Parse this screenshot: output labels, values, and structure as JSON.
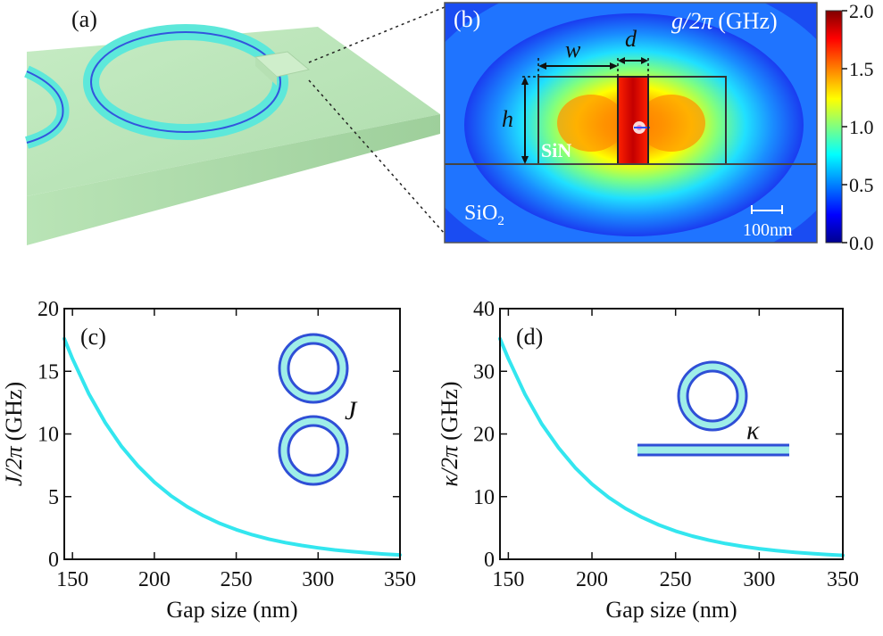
{
  "panel_labels": {
    "a": "(a)",
    "b": "(b)",
    "c": "(c)",
    "d": "(d)"
  },
  "panel_b": {
    "colorbar_title_symbol": "g/2π",
    "colorbar_title_unit": "(GHz)",
    "colorbar_ticks": [
      "2.0",
      "1.5",
      "1.0",
      "0.5",
      "0.0"
    ],
    "material_core": "SiN",
    "material_substrate": "SiO",
    "material_substrate_subscript": "2",
    "dim_w": "w",
    "dim_d": "d",
    "dim_h": "h",
    "scale_bar": "100nm"
  },
  "panel_c": {
    "inset_label": "J"
  },
  "panel_d": {
    "inset_label": "κ"
  },
  "chart_data": [
    {
      "id": "c",
      "type": "line",
      "title": "(c)",
      "xlabel": "Gap size (nm)",
      "ylabel_symbol": "J/2π",
      "ylabel_unit": "(GHz)",
      "xlim": [
        145,
        350
      ],
      "ylim": [
        0,
        20
      ],
      "xticks": [
        150,
        200,
        250,
        300,
        350
      ],
      "yticks": [
        0,
        5,
        10,
        15,
        20
      ],
      "color": "#33e6ef",
      "series": [
        {
          "name": "J/2π",
          "x": [
            145,
            150,
            160,
            170,
            180,
            190,
            200,
            210,
            220,
            230,
            240,
            250,
            260,
            270,
            280,
            290,
            300,
            310,
            320,
            330,
            340,
            350
          ],
          "y": [
            17.6,
            16.0,
            13.2,
            10.9,
            9.0,
            7.45,
            6.15,
            5.08,
            4.2,
            3.47,
            2.86,
            2.36,
            1.95,
            1.61,
            1.33,
            1.1,
            0.91,
            0.75,
            0.62,
            0.51,
            0.42,
            0.35
          ]
        }
      ]
    },
    {
      "id": "d",
      "type": "line",
      "title": "(d)",
      "xlabel": "Gap size (nm)",
      "ylabel_symbol": "κ/2π",
      "ylabel_unit": "(GHz)",
      "xlim": [
        145,
        350
      ],
      "ylim": [
        0,
        40
      ],
      "xticks": [
        150,
        200,
        250,
        300,
        350
      ],
      "yticks": [
        0,
        10,
        20,
        30,
        40
      ],
      "color": "#33e6ef",
      "series": [
        {
          "name": "κ/2π",
          "x": [
            145,
            150,
            160,
            170,
            180,
            190,
            200,
            210,
            220,
            230,
            240,
            250,
            260,
            270,
            280,
            290,
            300,
            310,
            320,
            330,
            340,
            350
          ],
          "y": [
            35.2,
            32.0,
            26.3,
            21.6,
            17.8,
            14.6,
            12.0,
            9.87,
            8.11,
            6.67,
            5.48,
            4.5,
            3.7,
            3.04,
            2.5,
            2.06,
            1.69,
            1.39,
            1.14,
            0.94,
            0.77,
            0.63
          ]
        }
      ]
    }
  ]
}
